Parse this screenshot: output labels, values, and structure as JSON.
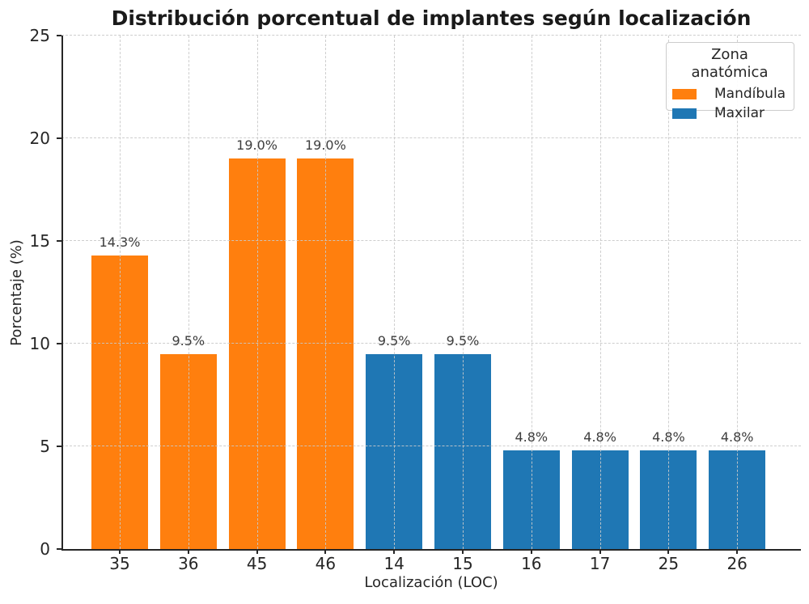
{
  "chart_data": {
    "type": "bar",
    "title": "Distribución porcentual de implantes según localización",
    "xlabel": "Localización (LOC)",
    "ylabel": "Porcentaje (%)",
    "ylim": [
      0,
      25
    ],
    "yticks": [
      0,
      5,
      10,
      15,
      20,
      25
    ],
    "grid": "dashed horizontal and vertical gridlines, drawn over bars",
    "spines": "left and bottom only",
    "categories": [
      "35",
      "36",
      "45",
      "46",
      "14",
      "15",
      "16",
      "17",
      "25",
      "26"
    ],
    "points": [
      {
        "category": "35",
        "value": 14.3,
        "label": "14.3%",
        "group": "Mandíbula"
      },
      {
        "category": "36",
        "value": 9.5,
        "label": "9.5%",
        "group": "Mandíbula"
      },
      {
        "category": "45",
        "value": 19.0,
        "label": "19.0%",
        "group": "Mandíbula"
      },
      {
        "category": "46",
        "value": 19.0,
        "label": "19.0%",
        "group": "Mandíbula"
      },
      {
        "category": "14",
        "value": 9.5,
        "label": "9.5%",
        "group": "Maxilar"
      },
      {
        "category": "15",
        "value": 9.5,
        "label": "9.5%",
        "group": "Maxilar"
      },
      {
        "category": "16",
        "value": 4.8,
        "label": "4.8%",
        "group": "Maxilar"
      },
      {
        "category": "17",
        "value": 4.8,
        "label": "4.8%",
        "group": "Maxilar"
      },
      {
        "category": "25",
        "value": 4.8,
        "label": "4.8%",
        "group": "Maxilar"
      },
      {
        "category": "26",
        "value": 4.8,
        "label": "4.8%",
        "group": "Maxilar"
      }
    ],
    "colors": {
      "Mandíbula": "#ff7f0e",
      "Maxilar": "#1f77b4"
    },
    "legend": {
      "title": "Zona anatómica",
      "position": "upper right",
      "entries": [
        {
          "label": "Mandíbula",
          "color": "#ff7f0e"
        },
        {
          "label": "Maxilar",
          "color": "#1f77b4"
        }
      ]
    }
  }
}
